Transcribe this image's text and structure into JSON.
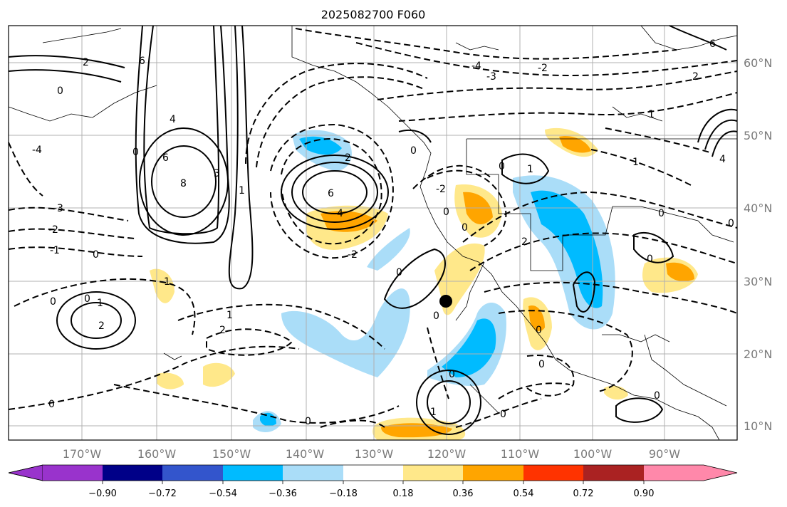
{
  "title": "2025082700 F060",
  "axes": {
    "longitude_labels": [
      "170°W",
      "160°W",
      "150°W",
      "140°W",
      "130°W",
      "120°W",
      "110°W",
      "100°W",
      "90°W"
    ],
    "latitude_labels": [
      "60°N",
      "50°N",
      "40°N",
      "30°N",
      "20°N",
      "10°N"
    ]
  },
  "colorbar": {
    "tick_labels": [
      "−0.90",
      "−0.72",
      "−0.54",
      "−0.36",
      "−0.18",
      "0.18",
      "0.36",
      "0.54",
      "0.72",
      "0.90"
    ],
    "colors": [
      "#9933cc",
      "#000088",
      "#3355cc",
      "#00bbff",
      "#aaddf8",
      "#ffffff",
      "#ffe88a",
      "#ffa500",
      "#ff3300",
      "#aa2222",
      "#ff88aa"
    ]
  },
  "contour_labels": [
    "-4",
    "-3",
    "-2",
    "-1",
    "0",
    "1",
    "2",
    "3",
    "4",
    "6",
    "8"
  ],
  "marker": "point-marker",
  "colors": {
    "frame": "#000000",
    "grid": "#b0b0b0",
    "axis_text": "#7a7a7a",
    "land_outline": "#000000"
  }
}
